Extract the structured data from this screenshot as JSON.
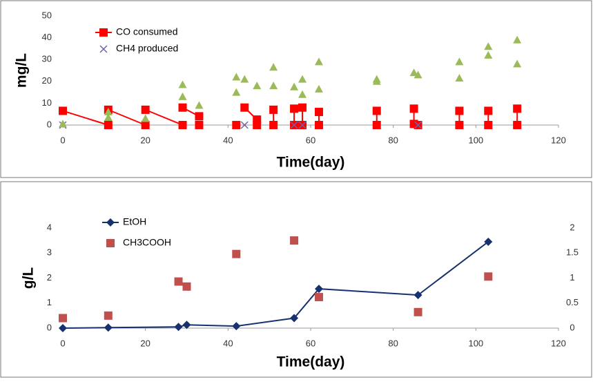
{
  "chart_data": [
    {
      "type": "line",
      "xlabel": "Time(day)",
      "ylabel": "mg/L",
      "xlim": [
        0,
        120
      ],
      "xticks": [
        0,
        20,
        40,
        60,
        80,
        100,
        120
      ],
      "ylim": [
        0,
        50
      ],
      "yticks": [
        0,
        10,
        20,
        30,
        40,
        50
      ],
      "grid": false,
      "legend": "upper left",
      "series": [
        {
          "name": "CO consumed",
          "color": "#ff0000",
          "marker": "square",
          "line": true,
          "x": [
            0,
            11,
            11,
            11,
            20,
            20,
            20,
            29,
            29,
            29,
            33,
            33,
            33,
            42,
            42,
            42,
            44,
            47,
            47,
            47,
            51,
            51,
            51,
            56,
            56,
            56,
            58,
            58,
            58,
            62,
            62,
            62,
            76,
            76,
            76,
            85,
            85,
            86,
            86,
            86,
            96,
            96,
            96,
            103,
            103,
            103,
            110,
            110,
            110
          ],
          "values": [
            6.5,
            0,
            null,
            7,
            0,
            null,
            7,
            0,
            null,
            8,
            4,
            null,
            0,
            null,
            0,
            null,
            8,
            2.5,
            0,
            null,
            7,
            0,
            null,
            7.5,
            0,
            null,
            8,
            0,
            null,
            6,
            0,
            null,
            6.5,
            0,
            null,
            7.5,
            0.5,
            null,
            0,
            null,
            6.5,
            0,
            null,
            6.5,
            0,
            null,
            7.5,
            0,
            null
          ]
        },
        {
          "name": "CH4 produced",
          "color": "#7060a8",
          "marker": "x",
          "line": false,
          "x": [
            0,
            44,
            56,
            58,
            86
          ],
          "values": [
            0,
            0,
            0,
            0,
            0
          ]
        },
        {
          "color": "#9bbb59",
          "marker": "triangle",
          "line": false,
          "x": [
            0,
            11,
            11,
            20,
            29,
            29,
            33,
            42,
            42,
            44,
            47,
            51,
            51,
            56,
            58,
            58,
            62,
            62,
            76,
            76,
            85,
            86,
            96,
            96,
            103,
            103,
            110,
            110
          ],
          "values": [
            0.5,
            6,
            3.5,
            3,
            18.5,
            13,
            9,
            22,
            15,
            21,
            18,
            26.5,
            18,
            17.5,
            21,
            14,
            29,
            16.5,
            21,
            20,
            24,
            23,
            29,
            21.5,
            36,
            32,
            39,
            28
          ]
        }
      ]
    },
    {
      "type": "line",
      "xlabel": "Time(day)",
      "ylabel": "g/L",
      "xlim": [
        0,
        120
      ],
      "xticks": [
        0,
        20,
        40,
        60,
        80,
        100,
        120
      ],
      "ylim": [
        0,
        4
      ],
      "yticks": [
        0,
        1,
        2,
        3,
        4
      ],
      "y2lim": [
        0,
        2
      ],
      "y2ticks": [
        0,
        0.5,
        1,
        1.5,
        2
      ],
      "grid": false,
      "legend": "upper left",
      "series": [
        {
          "name": "EtOH",
          "color": "#17306e",
          "marker": "diamond",
          "line": true,
          "x": [
            0,
            11,
            28,
            30,
            42,
            56,
            62,
            86,
            103
          ],
          "values": [
            0,
            0.02,
            0.05,
            0.13,
            0.08,
            0.4,
            1.57,
            1.32,
            3.45
          ]
        },
        {
          "name": "CH3COOH",
          "color": "#c0504d",
          "marker": "square",
          "line": false,
          "axis": "y2",
          "x": [
            0,
            11,
            28,
            30,
            42,
            56,
            62,
            86,
            103
          ],
          "values": [
            0.2,
            0.25,
            0.93,
            0.83,
            1.48,
            1.75,
            0.62,
            0.32,
            1.03
          ]
        }
      ]
    }
  ]
}
